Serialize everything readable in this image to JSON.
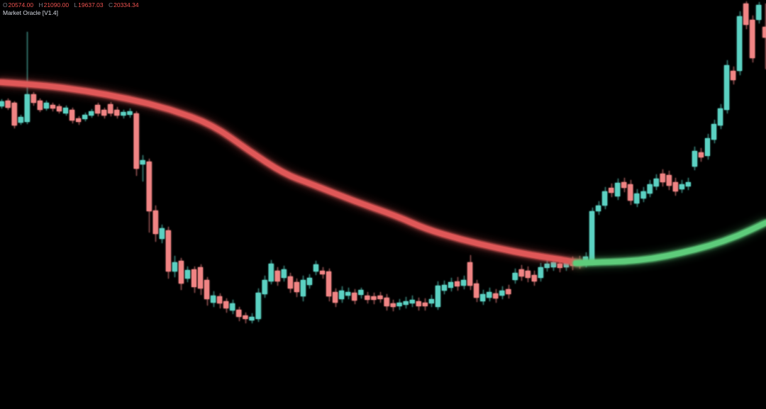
{
  "window": {
    "background": "#000000"
  },
  "legend": {
    "label_color": "#787b86",
    "value_color": "#ef5350",
    "ohlc": [
      {
        "label": "O",
        "value": "20574.00"
      },
      {
        "label": "H",
        "value": "21090.00"
      },
      {
        "label": "L",
        "value": "19637.03"
      },
      {
        "label": "C",
        "value": "20334.34"
      }
    ],
    "indicator": {
      "name": "Market Oracle [V1.4]",
      "color": "#d6dae3"
    }
  },
  "chart_data": {
    "type": "candlestick",
    "title": "",
    "xlabel": "",
    "ylabel": "",
    "grid": false,
    "axes_visible": false,
    "ylim": [
      12082,
      21170
    ],
    "last_bar_ohlc": {
      "open": 20574.0,
      "high": 21090.0,
      "low": 19637.03,
      "close": 20334.34
    },
    "colors": {
      "up": "#5BD1C2",
      "down": "#F08484",
      "trend_bearish": "#E05858",
      "trend_bullish": "#5ECC7B"
    },
    "layout": {
      "first_candle_x": 2,
      "candle_spacing": 9.05,
      "candle_width": 7,
      "trend_line_width": 9
    },
    "candles": [
      [
        18808,
        18965,
        18760,
        18918
      ],
      [
        18934,
        18981,
        18729,
        18776
      ],
      [
        18886,
        18918,
        18319,
        18382
      ],
      [
        18445,
        18619,
        18398,
        18571
      ],
      [
        18461,
        20461,
        18414,
        19075
      ],
      [
        19075,
        19122,
        18823,
        18886
      ],
      [
        18934,
        18981,
        18682,
        18729
      ],
      [
        18760,
        18934,
        18713,
        18886
      ],
      [
        18839,
        18886,
        18697,
        18760
      ],
      [
        18808,
        18855,
        18650,
        18697
      ],
      [
        18650,
        18823,
        18603,
        18776
      ],
      [
        18729,
        18776,
        18430,
        18493
      ],
      [
        18540,
        18587,
        18398,
        18461
      ],
      [
        18524,
        18666,
        18477,
        18619
      ],
      [
        18603,
        18745,
        18556,
        18697
      ],
      [
        18839,
        18886,
        18587,
        18650
      ],
      [
        18729,
        18776,
        18540,
        18603
      ],
      [
        18855,
        18902,
        18587,
        18650
      ],
      [
        18729,
        18792,
        18540,
        18603
      ],
      [
        18603,
        18729,
        18540,
        18682
      ],
      [
        18619,
        18760,
        18556,
        18697
      ],
      [
        18650,
        18697,
        17264,
        17422
      ],
      [
        17516,
        17721,
        17138,
        17611
      ],
      [
        17579,
        17642,
        16004,
        16477
      ],
      [
        16492,
        16603,
        15799,
        15972
      ],
      [
        15862,
        16177,
        15768,
        16098
      ],
      [
        16051,
        16130,
        14980,
        15138
      ],
      [
        15138,
        15484,
        15012,
        15342
      ],
      [
        15374,
        15437,
        14728,
        14870
      ],
      [
        14980,
        15248,
        14902,
        15169
      ],
      [
        15185,
        15248,
        14665,
        14791
      ],
      [
        15232,
        15295,
        14618,
        14760
      ],
      [
        14949,
        15012,
        14382,
        14524
      ],
      [
        14445,
        14697,
        14350,
        14602
      ],
      [
        14586,
        14650,
        14319,
        14429
      ],
      [
        14476,
        14539,
        14224,
        14319
      ],
      [
        14272,
        14508,
        14193,
        14429
      ],
      [
        14287,
        14350,
        14035,
        14130
      ],
      [
        14161,
        14224,
        13988,
        14082
      ],
      [
        14051,
        14209,
        13988,
        14130
      ],
      [
        14082,
        14760,
        14019,
        14665
      ],
      [
        14634,
        15043,
        14555,
        14949
      ],
      [
        14917,
        15390,
        14854,
        15311
      ],
      [
        15154,
        15232,
        14823,
        14917
      ],
      [
        14996,
        15264,
        14917,
        15185
      ],
      [
        15028,
        15106,
        14665,
        14760
      ],
      [
        14902,
        14980,
        14571,
        14681
      ],
      [
        14586,
        15043,
        14476,
        14949
      ],
      [
        14839,
        15075,
        14760,
        14996
      ],
      [
        15138,
        15374,
        15059,
        15295
      ],
      [
        15154,
        15232,
        14980,
        15075
      ],
      [
        15138,
        15201,
        14476,
        14586
      ],
      [
        14681,
        14760,
        14350,
        14445
      ],
      [
        14524,
        14807,
        14445,
        14713
      ],
      [
        14602,
        14776,
        14524,
        14681
      ],
      [
        14665,
        14744,
        14413,
        14492
      ],
      [
        14618,
        14776,
        14539,
        14728
      ],
      [
        14602,
        14681,
        14429,
        14508
      ],
      [
        14586,
        14665,
        14413,
        14508
      ],
      [
        14602,
        14681,
        14445,
        14524
      ],
      [
        14555,
        14634,
        14272,
        14366
      ],
      [
        14429,
        14508,
        14256,
        14350
      ],
      [
        14366,
        14524,
        14287,
        14445
      ],
      [
        14398,
        14571,
        14319,
        14476
      ],
      [
        14429,
        14602,
        14350,
        14508
      ],
      [
        14476,
        14555,
        14272,
        14366
      ],
      [
        14445,
        14539,
        14272,
        14366
      ],
      [
        14429,
        14618,
        14350,
        14524
      ],
      [
        14350,
        14917,
        14287,
        14823
      ],
      [
        14713,
        14933,
        14634,
        14839
      ],
      [
        14776,
        14996,
        14697,
        14902
      ],
      [
        14917,
        15012,
        14713,
        14807
      ],
      [
        14823,
        15043,
        14744,
        14949
      ],
      [
        15342,
        15500,
        14728,
        14823
      ],
      [
        14870,
        14949,
        14461,
        14555
      ],
      [
        14476,
        14728,
        14398,
        14634
      ],
      [
        14555,
        14776,
        14476,
        14681
      ],
      [
        14650,
        14744,
        14445,
        14539
      ],
      [
        14602,
        14807,
        14524,
        14713
      ],
      [
        14744,
        14839,
        14539,
        14634
      ],
      [
        14949,
        15201,
        14870,
        15106
      ],
      [
        15185,
        15280,
        14933,
        15028
      ],
      [
        15154,
        15248,
        14902,
        14996
      ],
      [
        15059,
        15154,
        14823,
        14917
      ],
      [
        14996,
        15326,
        14917,
        15232
      ],
      [
        15217,
        15406,
        15138,
        15311
      ],
      [
        15232,
        15437,
        15154,
        15342
      ],
      [
        15311,
        15406,
        15122,
        15217
      ],
      [
        15232,
        15437,
        15154,
        15342
      ],
      [
        15374,
        15468,
        15169,
        15264
      ],
      [
        15390,
        15484,
        15201,
        15295
      ],
      [
        15311,
        15563,
        15232,
        15468
      ],
      [
        15342,
        16555,
        15279,
        16477
      ],
      [
        16477,
        16697,
        16398,
        16603
      ],
      [
        16603,
        17012,
        16524,
        16918
      ],
      [
        16996,
        17091,
        16792,
        16886
      ],
      [
        16807,
        17201,
        16729,
        17107
      ],
      [
        17122,
        17217,
        16902,
        16996
      ],
      [
        17075,
        17170,
        16618,
        16713
      ],
      [
        16650,
        16965,
        16571,
        16870
      ],
      [
        16760,
        17012,
        16681,
        16918
      ],
      [
        16870,
        17170,
        16792,
        17075
      ],
      [
        17028,
        17296,
        16949,
        17201
      ],
      [
        17311,
        17406,
        17028,
        17122
      ],
      [
        17280,
        17374,
        16949,
        17044
      ],
      [
        17122,
        17217,
        16823,
        16918
      ],
      [
        16965,
        17170,
        16886,
        17075
      ],
      [
        17028,
        17217,
        16949,
        17122
      ],
      [
        17469,
        17910,
        17390,
        17815
      ],
      [
        17784,
        17878,
        17579,
        17674
      ],
      [
        17705,
        18193,
        17626,
        18099
      ],
      [
        18067,
        18508,
        17988,
        18414
      ],
      [
        18382,
        18855,
        18304,
        18760
      ],
      [
        18729,
        19831,
        18650,
        19721
      ],
      [
        19595,
        19690,
        19296,
        19390
      ],
      [
        19595,
        20918,
        19501,
        20808
      ],
      [
        21091,
        21139,
        20524,
        20619
      ],
      [
        20729,
        20824,
        19784,
        19879
      ],
      [
        20729,
        21123,
        20650,
        21060
      ],
      [
        20574,
        21090,
        19637,
        20334
      ]
    ],
    "series": [
      {
        "name": "trend-line-bearish",
        "type": "line",
        "color": "#E05858",
        "points": [
          [
            0,
            19343
          ],
          [
            60,
            19280
          ],
          [
            120,
            19154
          ],
          [
            180,
            18981
          ],
          [
            240,
            18745
          ],
          [
            300,
            18398
          ],
          [
            350,
            17831
          ],
          [
            400,
            17311
          ],
          [
            440,
            17075
          ],
          [
            500,
            16697
          ],
          [
            560,
            16366
          ],
          [
            600,
            16083
          ],
          [
            650,
            15847
          ],
          [
            700,
            15658
          ],
          [
            750,
            15500
          ],
          [
            790,
            15406
          ],
          [
            818,
            15327
          ]
        ]
      },
      {
        "name": "trend-line-bullish",
        "type": "line",
        "color": "#5ECC7B",
        "points": [
          [
            812,
            15323
          ],
          [
            840,
            15342
          ],
          [
            880,
            15358
          ],
          [
            920,
            15421
          ],
          [
            960,
            15547
          ],
          [
            1000,
            15705
          ],
          [
            1040,
            15925
          ],
          [
            1080,
            16224
          ]
        ]
      }
    ]
  }
}
